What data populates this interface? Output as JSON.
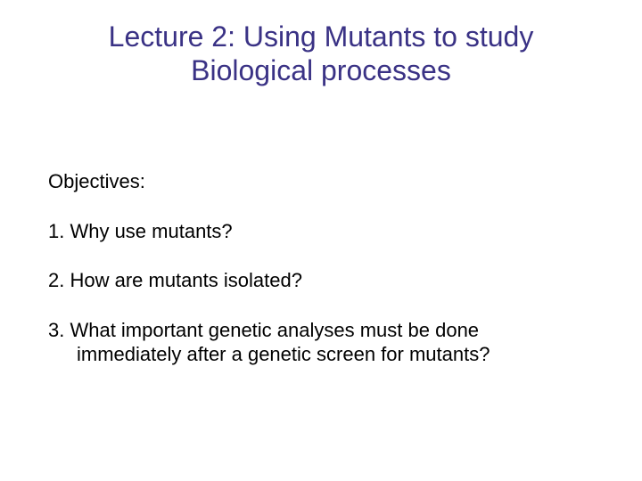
{
  "colors": {
    "title": "#3a3285",
    "body": "#000000",
    "background": "#ffffff"
  },
  "title": {
    "line1": "Lecture 2: Using Mutants to study",
    "line2": "Biological processes"
  },
  "objectives_heading": "Objectives:",
  "objectives": [
    {
      "text": "1. Why use mutants?"
    },
    {
      "text": "2. How are mutants isolated?"
    },
    {
      "text": "3. What important genetic analyses must be done",
      "cont": "immediately after a genetic screen for mutants?"
    }
  ]
}
